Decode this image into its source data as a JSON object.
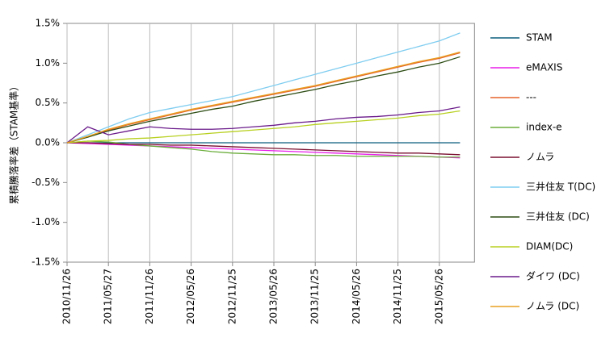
{
  "chart_data": {
    "type": "line",
    "y_label": "累積騰落率差（STAM基準）",
    "categories": [
      "2010/11/26",
      null,
      "2011/05/27",
      null,
      "2011/11/26",
      null,
      "2012/05/26",
      null,
      "2012/11/25",
      null,
      "2013/05/26",
      null,
      "2013/11/25",
      null,
      "2014/05/26",
      null,
      "2014/11/25",
      null,
      "2015/05/26",
      null
    ],
    "ylim": [
      -1.5,
      1.5
    ],
    "yticks": [
      {
        "value": -1.5,
        "label": "-1.5%"
      },
      {
        "value": -1.0,
        "label": "-1.0%"
      },
      {
        "value": -0.5,
        "label": "-0.5%"
      },
      {
        "value": 0,
        "label": "0.0%"
      },
      {
        "value": 0.5,
        "label": "0.5%"
      },
      {
        "value": 1.0,
        "label": "1.0%"
      },
      {
        "value": 1.5,
        "label": "1.5%"
      }
    ],
    "grid": "x",
    "legend": "right",
    "series": [
      {
        "name": "STAM",
        "color": "#0a5e7e",
        "values": [
          0,
          0,
          0,
          0,
          0,
          0,
          0,
          0,
          0,
          0,
          0,
          0,
          0,
          0,
          0,
          0,
          0,
          0,
          0,
          0
        ]
      },
      {
        "name": "eMAXIS",
        "color": "#e81ee8",
        "values": [
          0,
          -0.01,
          -0.02,
          -0.03,
          -0.04,
          -0.05,
          -0.06,
          -0.07,
          -0.08,
          -0.09,
          -0.1,
          -0.11,
          -0.12,
          -0.13,
          -0.14,
          -0.15,
          -0.16,
          -0.17,
          -0.18,
          -0.19
        ]
      },
      {
        "name": "---",
        "color": "#e5622a",
        "values": [
          0,
          0.08,
          0.16,
          0.23,
          0.29,
          0.35,
          0.41,
          0.46,
          0.51,
          0.56,
          0.61,
          0.66,
          0.71,
          0.77,
          0.83,
          0.89,
          0.95,
          1.01,
          1.06,
          1.13
        ]
      },
      {
        "name": "index-e",
        "color": "#6aad3a",
        "values": [
          0,
          0.02,
          0.01,
          -0.02,
          -0.04,
          -0.06,
          -0.08,
          -0.11,
          -0.13,
          -0.14,
          -0.15,
          -0.15,
          -0.16,
          -0.16,
          -0.17,
          -0.17,
          -0.17,
          -0.17,
          -0.18,
          -0.18
        ]
      },
      {
        "name": "ノムラ",
        "color": "#7a1030",
        "values": [
          0,
          0,
          -0.01,
          -0.02,
          -0.02,
          -0.03,
          -0.03,
          -0.04,
          -0.05,
          -0.06,
          -0.07,
          -0.08,
          -0.09,
          -0.1,
          -0.11,
          -0.12,
          -0.13,
          -0.13,
          -0.14,
          -0.15
        ]
      },
      {
        "name": "三井住友 T(DC)",
        "color": "#7fcdf0",
        "values": [
          0,
          0.1,
          0.2,
          0.3,
          0.38,
          0.43,
          0.48,
          0.53,
          0.58,
          0.65,
          0.72,
          0.79,
          0.86,
          0.93,
          1.0,
          1.07,
          1.14,
          1.21,
          1.28,
          1.38
        ]
      },
      {
        "name": "三井住友 (DC)",
        "color": "#2d4d14",
        "values": [
          0,
          0.07,
          0.15,
          0.21,
          0.27,
          0.32,
          0.37,
          0.42,
          0.46,
          0.52,
          0.57,
          0.62,
          0.67,
          0.73,
          0.78,
          0.84,
          0.89,
          0.95,
          1.0,
          1.08
        ]
      },
      {
        "name": "DIAM(DC)",
        "color": "#b8d020",
        "values": [
          0,
          0.02,
          0.03,
          0.05,
          0.06,
          0.08,
          0.1,
          0.12,
          0.14,
          0.16,
          0.18,
          0.2,
          0.23,
          0.25,
          0.27,
          0.29,
          0.31,
          0.34,
          0.36,
          0.4
        ]
      },
      {
        "name": "ダイワ (DC)",
        "color": "#6a1a8a",
        "values": [
          0,
          0.2,
          0.1,
          0.15,
          0.2,
          0.18,
          0.17,
          0.17,
          0.18,
          0.2,
          0.22,
          0.25,
          0.27,
          0.3,
          0.32,
          0.33,
          0.35,
          0.38,
          0.4,
          0.45
        ]
      },
      {
        "name": "ノムラ (DC)",
        "color": "#e8a020",
        "values": [
          0,
          0.08,
          0.17,
          0.24,
          0.3,
          0.36,
          0.42,
          0.47,
          0.52,
          0.57,
          0.62,
          0.67,
          0.72,
          0.78,
          0.84,
          0.9,
          0.96,
          1.02,
          1.07,
          1.14
        ]
      }
    ]
  }
}
